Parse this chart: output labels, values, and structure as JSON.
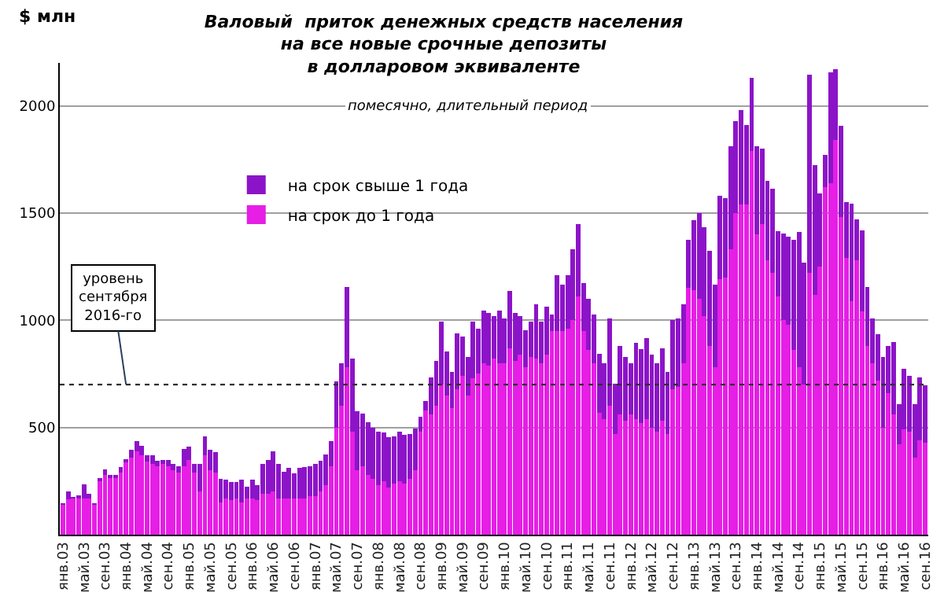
{
  "chart_data": {
    "type": "bar",
    "stacked": true,
    "title": "Валовый  приток денежных средств населения\nна все новые срочные депозиты\nв долларовом эквиваленте",
    "subtitle": "помесячно, длительный период",
    "ylabel": "$ млн",
    "categories": [
      "янв.03",
      null,
      null,
      null,
      "май.03",
      null,
      null,
      null,
      "сен.03",
      null,
      null,
      null,
      "янв.04",
      null,
      null,
      null,
      "май.04",
      null,
      null,
      null,
      "сен.04",
      null,
      null,
      null,
      "янв.05",
      null,
      null,
      null,
      "май.05",
      null,
      null,
      null,
      "сен.05",
      null,
      null,
      null,
      "янв.06",
      null,
      null,
      null,
      "май.06",
      null,
      null,
      null,
      "сен.06",
      null,
      null,
      null,
      "янв.07",
      null,
      null,
      null,
      "май.07",
      null,
      null,
      null,
      "сен.07",
      null,
      null,
      null,
      "янв.08",
      null,
      null,
      null,
      "май.08",
      null,
      null,
      null,
      "сен.08",
      null,
      null,
      null,
      "янв.09",
      null,
      null,
      null,
      "май.09",
      null,
      null,
      null,
      "сен.09",
      null,
      null,
      null,
      "янв.10",
      null,
      null,
      null,
      "май.10",
      null,
      null,
      null,
      "сен.10",
      null,
      null,
      null,
      "янв.11",
      null,
      null,
      null,
      "май.11",
      null,
      null,
      null,
      "сен.11",
      null,
      null,
      null,
      "янв.12",
      null,
      null,
      null,
      "май.12",
      null,
      null,
      null,
      "сен.12",
      null,
      null,
      null,
      "янв.13",
      null,
      null,
      null,
      "май.13",
      null,
      null,
      null,
      "сен.13",
      null,
      null,
      null,
      "янв.14",
      null,
      null,
      null,
      "май.14",
      null,
      null,
      null,
      "сен.14",
      null,
      null,
      null,
      "янв.15",
      null,
      null,
      null,
      "май.15",
      null,
      null,
      null,
      "сен.15",
      null,
      null,
      null,
      "янв.16",
      null,
      null,
      null,
      "май.16",
      null,
      null,
      null,
      "сен.16"
    ],
    "series": [
      {
        "name": "на срок до 1 года",
        "color": "#e61ee6",
        "values": [
          140,
          165,
          170,
          170,
          170,
          170,
          140,
          250,
          280,
          270,
          270,
          290,
          340,
          360,
          390,
          370,
          340,
          330,
          320,
          330,
          320,
          300,
          290,
          320,
          350,
          290,
          200,
          370,
          300,
          290,
          150,
          170,
          160,
          170,
          150,
          170,
          170,
          160,
          190,
          190,
          200,
          170,
          170,
          170,
          170,
          170,
          170,
          180,
          180,
          200,
          230,
          320,
          500,
          600,
          780,
          480,
          300,
          320,
          280,
          260,
          230,
          250,
          220,
          240,
          250,
          240,
          260,
          300,
          480,
          580,
          560,
          600,
          700,
          650,
          590,
          680,
          740,
          650,
          730,
          750,
          800,
          790,
          820,
          800,
          800,
          870,
          810,
          840,
          780,
          830,
          820,
          800,
          840,
          950,
          950,
          950,
          960,
          1000,
          1110,
          950,
          860,
          800,
          570,
          540,
          600,
          470,
          560,
          530,
          560,
          540,
          520,
          540,
          500,
          480,
          530,
          470,
          680,
          690,
          800,
          1150,
          1140,
          1100,
          1020,
          880,
          780,
          1190,
          1200,
          1330,
          1500,
          1540,
          1540,
          1790,
          1400,
          1450,
          1280,
          1220,
          1110,
          1000,
          980,
          860,
          780,
          700,
          1220,
          1120,
          1250,
          1620,
          1640,
          1840,
          1480,
          1290,
          1090,
          1280,
          1040,
          880,
          800,
          720,
          500,
          660,
          560,
          420,
          490,
          480,
          360,
          440,
          430
        ]
      },
      {
        "name": "на срок свыше 1 года",
        "color": "#8c14c8",
        "values": [
          5,
          35,
          5,
          15,
          65,
          20,
          5,
          15,
          25,
          10,
          5,
          25,
          10,
          35,
          45,
          45,
          30,
          40,
          25,
          20,
          30,
          30,
          30,
          80,
          60,
          40,
          130,
          90,
          95,
          95,
          110,
          85,
          85,
          75,
          105,
          55,
          85,
          70,
          140,
          160,
          190,
          160,
          125,
          140,
          115,
          140,
          145,
          140,
          150,
          145,
          145,
          115,
          215,
          200,
          375,
          340,
          275,
          245,
          245,
          240,
          250,
          225,
          235,
          220,
          230,
          225,
          210,
          195,
          70,
          45,
          175,
          210,
          295,
          205,
          170,
          260,
          185,
          180,
          265,
          210,
          245,
          245,
          200,
          245,
          210,
          265,
          225,
          180,
          175,
          165,
          255,
          195,
          225,
          75,
          260,
          215,
          250,
          330,
          340,
          225,
          240,
          225,
          275,
          260,
          410,
          235,
          320,
          300,
          240,
          355,
          345,
          375,
          340,
          320,
          340,
          290,
          320,
          320,
          275,
          225,
          325,
          400,
          415,
          445,
          385,
          390,
          370,
          480,
          430,
          440,
          370,
          340,
          410,
          350,
          370,
          395,
          305,
          405,
          410,
          515,
          630,
          570,
          925,
          605,
          340,
          150,
          515,
          330,
          425,
          260,
          455,
          190,
          380,
          275,
          210,
          215,
          330,
          220,
          340,
          190,
          285,
          260,
          250,
          295,
          265
        ]
      }
    ],
    "ylim": [
      0,
      2200
    ],
    "yticks": [
      500,
      1000,
      1500,
      2000
    ],
    "grid": "y",
    "legend": "top left",
    "ref_lines": [
      {
        "axis": "y",
        "value": 700,
        "label": "уровень\nсентября\n2016-го",
        "line_style": "dotted",
        "color": "#303030"
      }
    ]
  }
}
